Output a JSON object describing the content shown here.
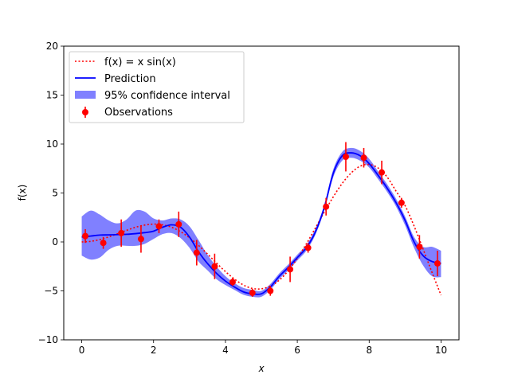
{
  "chart_data": {
    "type": "line",
    "title": "",
    "xlabel": "x",
    "ylabel": "f(x)",
    "xlim": [
      -0.5,
      10.5
    ],
    "ylim": [
      -10,
      20
    ],
    "xticks": [
      0,
      2,
      4,
      6,
      8,
      10
    ],
    "yticks": [
      -10,
      -5,
      0,
      5,
      10,
      15,
      20
    ],
    "xtick_labels": [
      "0",
      "2",
      "4",
      "6",
      "8",
      "10"
    ],
    "ytick_labels": [
      "−10",
      "−5",
      "0",
      "5",
      "10",
      "15",
      "20"
    ],
    "legend": {
      "position": "top-left",
      "entries": [
        {
          "label": "f(x) = x sin(x)",
          "style": "dotted",
          "color": "#ff0000"
        },
        {
          "label": "Prediction",
          "style": "solid",
          "color": "#0000ff"
        },
        {
          "label": "95% confidence interval",
          "style": "band",
          "color": "#8080ff"
        },
        {
          "label": "Observations",
          "style": "errorbar",
          "color": "#ff0000"
        }
      ]
    },
    "series": [
      {
        "name": "f(x) = x sin(x)",
        "kind": "function",
        "x": [
          0.0,
          0.25,
          0.5,
          0.75,
          1.0,
          1.25,
          1.5,
          1.75,
          2.0,
          2.25,
          2.5,
          2.75,
          3.0,
          3.25,
          3.5,
          3.75,
          4.0,
          4.25,
          4.5,
          4.75,
          5.0,
          5.25,
          5.5,
          5.75,
          6.0,
          6.25,
          6.5,
          6.75,
          7.0,
          7.25,
          7.5,
          7.75,
          8.0,
          8.25,
          8.5,
          8.75,
          9.0,
          9.25,
          9.5,
          9.75,
          10.0
        ],
        "y": [
          0.0,
          0.06,
          0.24,
          0.51,
          0.84,
          1.19,
          1.5,
          1.72,
          1.82,
          1.75,
          1.5,
          1.05,
          0.42,
          -0.35,
          -1.23,
          -2.15,
          -3.03,
          -3.79,
          -4.4,
          -4.75,
          -4.79,
          -4.51,
          -3.9,
          -2.93,
          -1.68,
          -0.21,
          1.4,
          3.04,
          4.6,
          5.98,
          7.05,
          7.74,
          7.91,
          7.55,
          6.63,
          5.18,
          3.71,
          1.62,
          -0.72,
          -3.12,
          -5.44
        ]
      },
      {
        "name": "Prediction",
        "kind": "gp_mean",
        "x": [
          0.0,
          0.25,
          0.5,
          0.75,
          1.0,
          1.25,
          1.5,
          1.75,
          2.0,
          2.25,
          2.5,
          2.75,
          3.0,
          3.25,
          3.5,
          3.75,
          4.0,
          4.25,
          4.5,
          4.75,
          5.0,
          5.25,
          5.5,
          5.75,
          6.0,
          6.25,
          6.5,
          6.75,
          7.0,
          7.25,
          7.5,
          7.75,
          8.0,
          8.25,
          8.5,
          8.75,
          9.0,
          9.25,
          9.5,
          9.75,
          10.0
        ],
        "y": [
          0.5,
          0.6,
          0.7,
          0.72,
          0.75,
          0.78,
          0.85,
          0.95,
          1.1,
          1.5,
          1.75,
          1.5,
          0.5,
          -1.0,
          -2.2,
          -3.2,
          -4.0,
          -4.6,
          -5.1,
          -5.3,
          -5.3,
          -4.6,
          -3.5,
          -2.6,
          -1.6,
          -0.6,
          1.0,
          3.5,
          7.0,
          8.8,
          9.1,
          8.8,
          8.0,
          6.8,
          5.5,
          4.0,
          2.2,
          0.0,
          -1.4,
          -2.0,
          -2.2
        ],
        "lower": [
          -1.4,
          -1.8,
          -1.6,
          -0.8,
          -0.4,
          -0.4,
          -0.4,
          -0.2,
          0.3,
          0.8,
          0.9,
          0.4,
          -0.6,
          -2.0,
          -2.9,
          -3.8,
          -4.4,
          -4.9,
          -5.4,
          -5.6,
          -5.6,
          -4.9,
          -3.8,
          -2.9,
          -1.9,
          -0.9,
          0.7,
          3.2,
          6.6,
          8.3,
          8.6,
          8.3,
          7.6,
          6.4,
          5.1,
          3.6,
          1.7,
          -0.6,
          -2.4,
          -3.5,
          -3.6
        ],
        "upper": [
          2.6,
          3.2,
          2.8,
          2.2,
          1.9,
          2.3,
          3.2,
          3.1,
          2.4,
          2.2,
          2.4,
          2.3,
          1.6,
          0.2,
          -1.3,
          -2.5,
          -3.5,
          -4.2,
          -4.7,
          -4.9,
          -5.0,
          -4.3,
          -3.2,
          -2.3,
          -1.3,
          -0.3,
          1.3,
          3.8,
          7.4,
          9.2,
          9.6,
          9.3,
          8.5,
          7.2,
          5.9,
          4.4,
          2.6,
          0.5,
          -0.5,
          -0.5,
          -0.9
        ]
      },
      {
        "name": "Observations",
        "kind": "errorbar",
        "x": [
          0.1,
          0.6,
          1.1,
          1.65,
          2.15,
          2.7,
          3.2,
          3.7,
          4.2,
          4.75,
          5.25,
          5.8,
          6.3,
          6.8,
          7.35,
          7.85,
          8.35,
          8.9,
          9.4,
          9.9
        ],
        "y": [
          0.6,
          -0.1,
          0.9,
          0.3,
          1.6,
          1.8,
          -1.1,
          -2.5,
          -4.1,
          -5.2,
          -5.0,
          -2.8,
          -0.6,
          3.6,
          8.7,
          8.6,
          7.1,
          4.0,
          -0.5,
          -2.2
        ],
        "err": [
          0.7,
          0.6,
          1.4,
          1.4,
          0.7,
          1.3,
          1.3,
          1.3,
          0.4,
          0.4,
          0.5,
          1.3,
          0.5,
          0.9,
          1.5,
          1.0,
          1.2,
          0.5,
          1.2,
          1.3
        ]
      }
    ]
  }
}
